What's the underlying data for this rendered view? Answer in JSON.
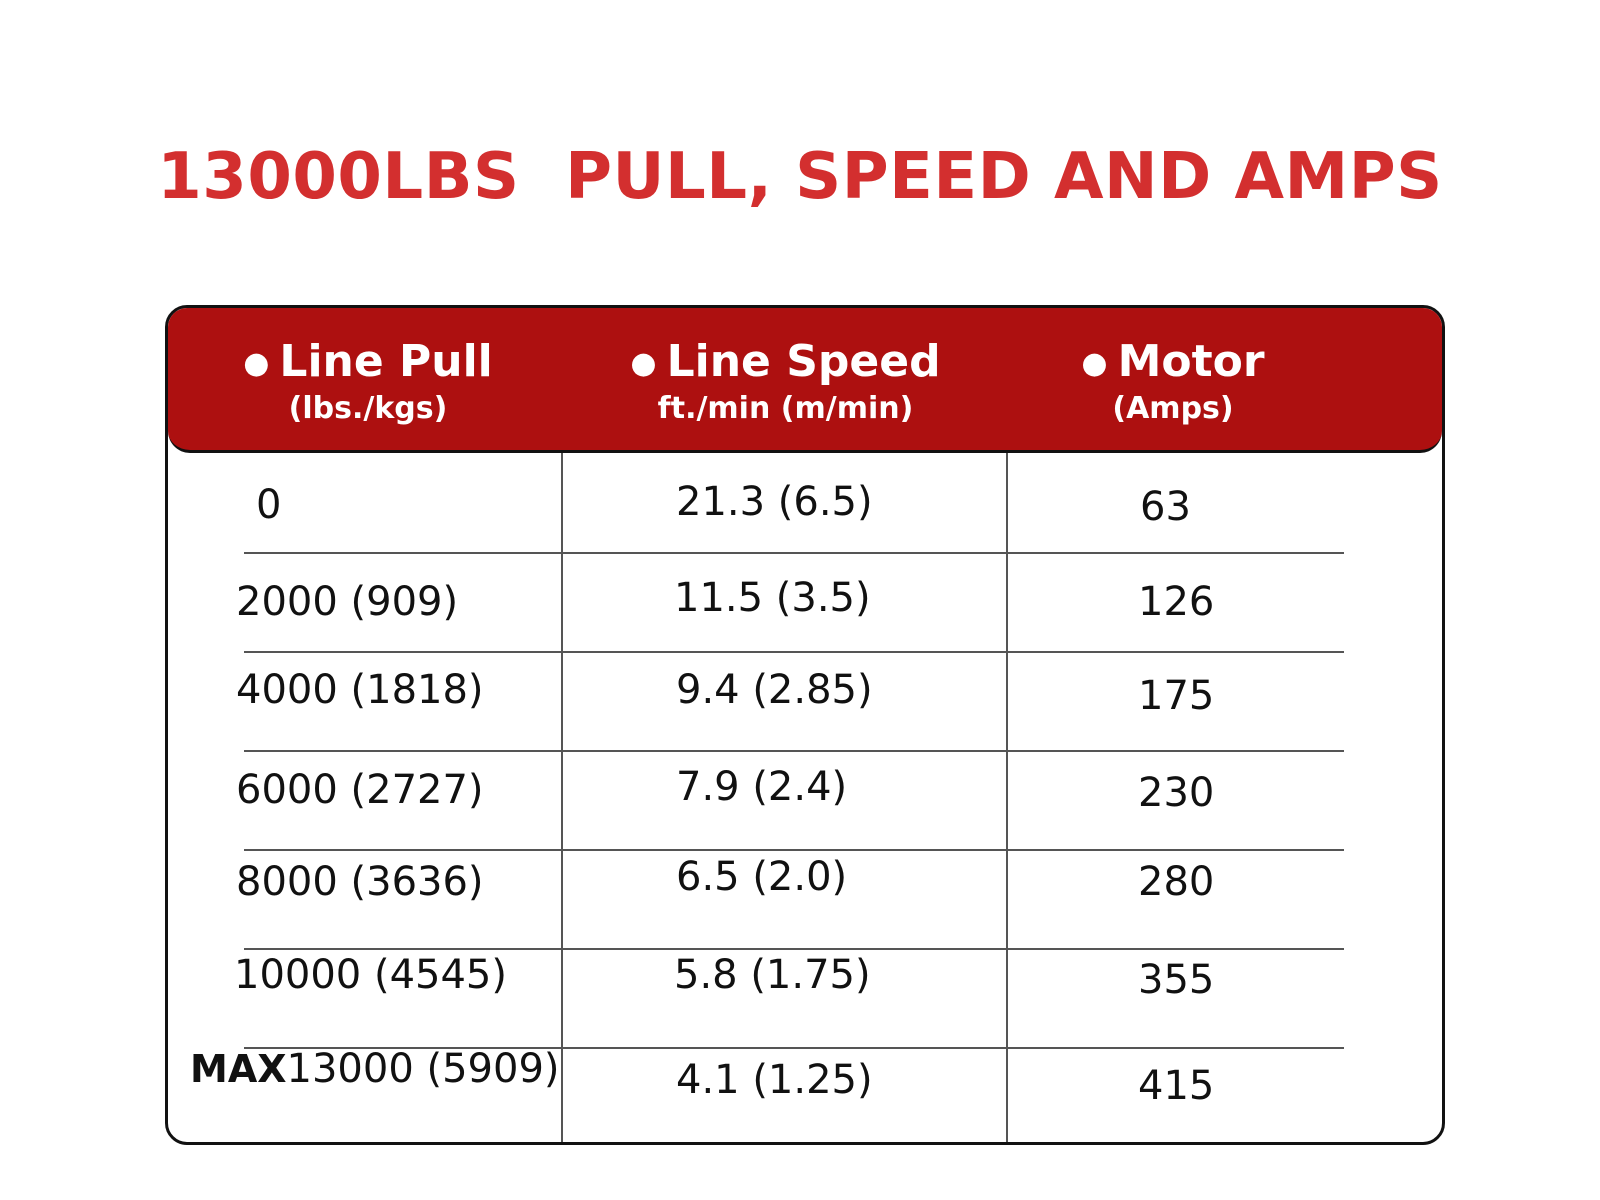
{
  "chart_data": {
    "type": "table",
    "title": "13000LBS  PULL, SPEED AND AMPS",
    "columns": [
      {
        "label": "Line Pull",
        "sublabel": "(lbs./kgs)"
      },
      {
        "label": "Line Speed",
        "sublabel": "ft./min (m/min)"
      },
      {
        "label": "Motor",
        "sublabel": "(Amps)"
      }
    ],
    "rows": [
      {
        "prefix": "",
        "pull": "0",
        "speed": "21.3 (6.5)",
        "amps": "63"
      },
      {
        "prefix": "",
        "pull": "2000 (909)",
        "speed": "11.5 (3.5)",
        "amps": "126"
      },
      {
        "prefix": "",
        "pull": "4000 (1818)",
        "speed": "9.4 (2.85)",
        "amps": "175"
      },
      {
        "prefix": "",
        "pull": "6000 (2727)",
        "speed": "7.9 (2.4)",
        "amps": "230"
      },
      {
        "prefix": "",
        "pull": "8000 (3636)",
        "speed": "6.5 (2.0)",
        "amps": "280"
      },
      {
        "prefix": "",
        "pull": "10000 (4545)",
        "speed": "5.8 (1.75)",
        "amps": "355"
      },
      {
        "prefix": "MAX",
        "pull": "13000 (5909)",
        "speed": "4.1 (1.25)",
        "amps": "415"
      }
    ],
    "colors": {
      "title": "#d32f2f",
      "header_background": "#ad1010",
      "header_text": "#ffffff"
    }
  }
}
